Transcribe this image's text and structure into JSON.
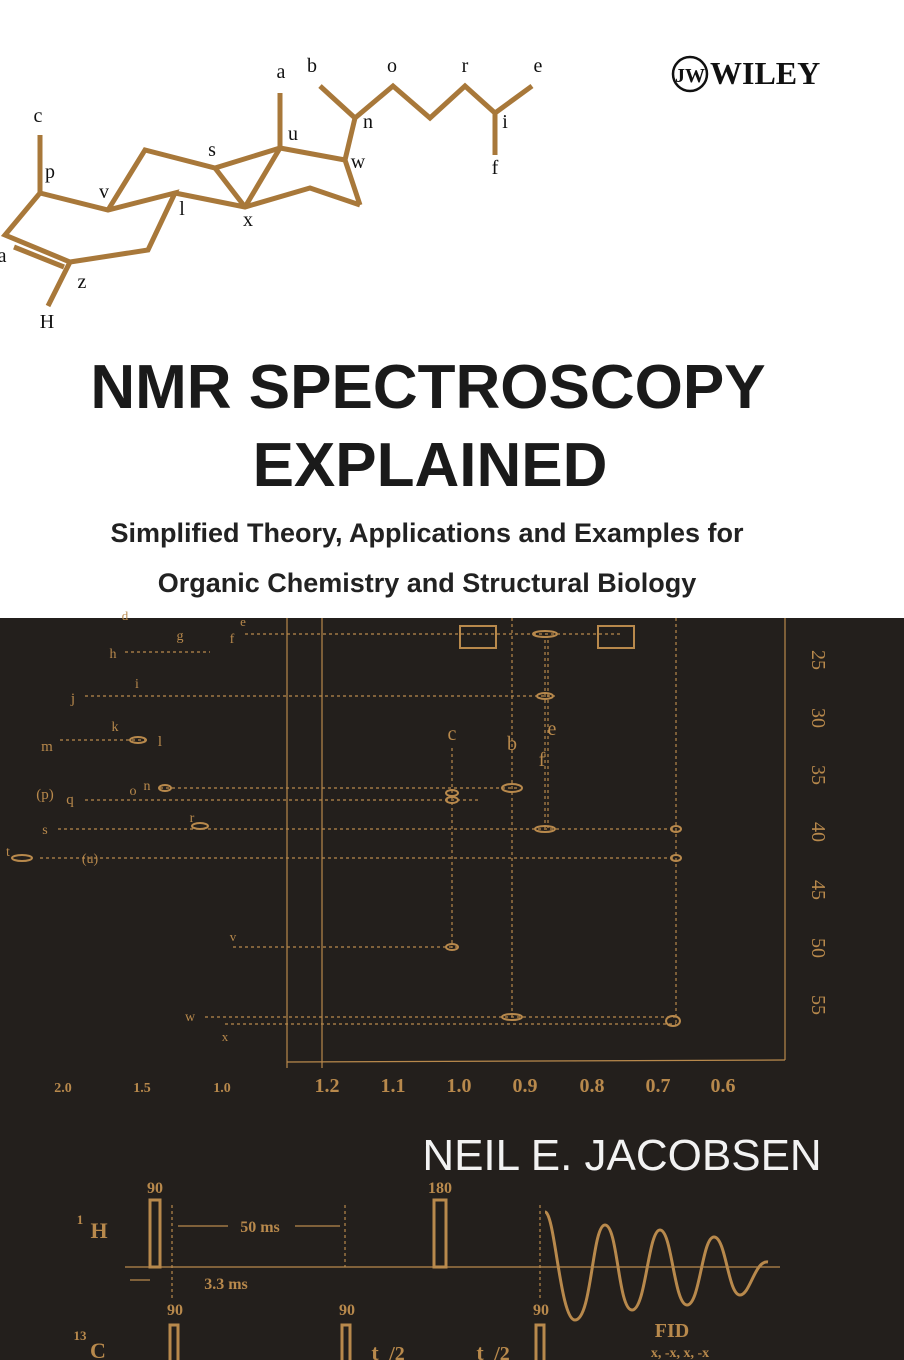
{
  "publisher": {
    "mark": "JW",
    "name": "WILEY"
  },
  "molecule_labels": [
    "a",
    "b",
    "o",
    "r",
    "e",
    "c",
    "u",
    "s",
    "p",
    "v",
    "l",
    "x",
    "w",
    "n",
    "i",
    "f",
    "a",
    "z",
    "H"
  ],
  "title": [
    "NMR SPECTROSCOPY",
    "EXPLAINED"
  ],
  "subtitle": [
    "Simplified Theory, Applications and Examples for",
    "Organic Chemistry and Structural Biology"
  ],
  "spectrum": {
    "peak_labels": [
      "d",
      "e",
      "f",
      "g",
      "h",
      "i",
      "j",
      "k",
      "m",
      "l",
      "c",
      "b",
      "e",
      "f",
      "(p)",
      "o",
      "n",
      "q",
      "r",
      "s",
      "t",
      "(u)",
      "v",
      "w",
      "x"
    ],
    "right_axis": [
      "25",
      "30",
      "35",
      "40",
      "45",
      "50",
      "55"
    ],
    "bottom_axis": [
      "2.0",
      "1.5",
      "1.0",
      "1.2",
      "1.1",
      "1.0",
      "0.9",
      "0.8",
      "0.7",
      "0.6"
    ]
  },
  "author": "NEIL E. JACOBSEN",
  "pulse_sequence": {
    "labels": [
      "90",
      "180",
      "1",
      "H",
      "50 ms",
      "3.3 ms",
      "13",
      "C",
      "90",
      "90",
      "90",
      "t",
      "/2",
      "t",
      "/2",
      "FID",
      "x, -x, x, -x"
    ]
  }
}
